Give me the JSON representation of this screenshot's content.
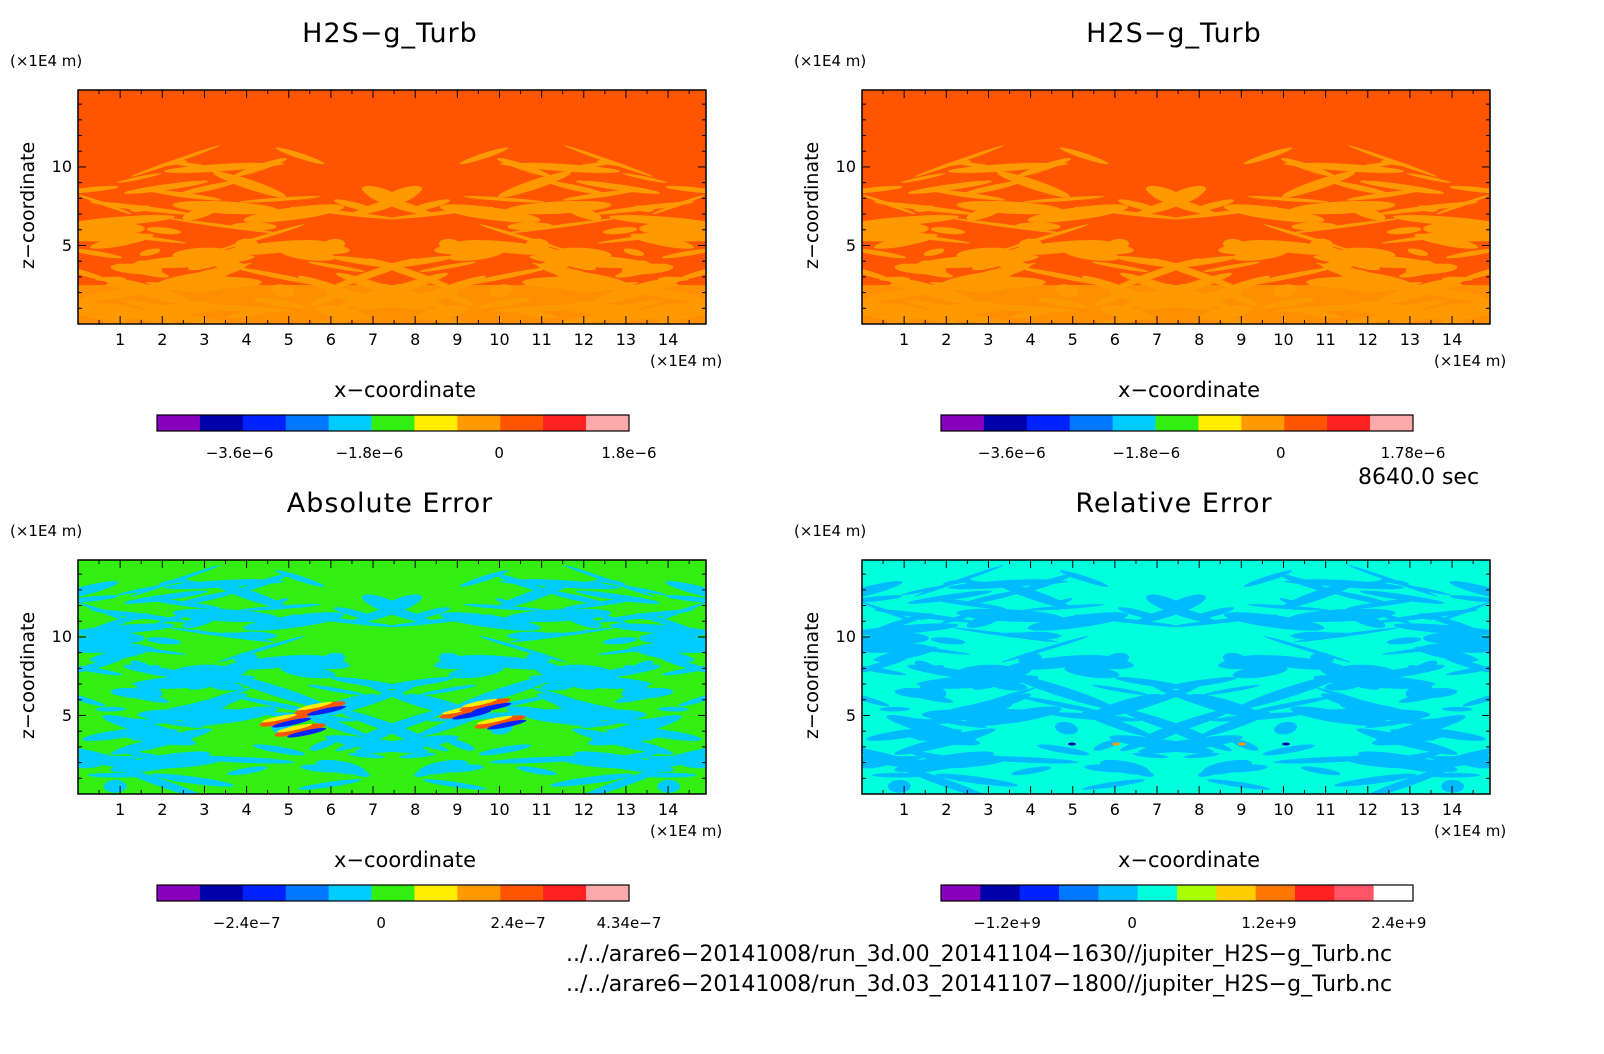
{
  "panels": [
    {
      "title": "H2S−g_Turb",
      "xlabel": "x−coordinate",
      "ylabel": "z−coordinate",
      "xunit": "(×1E4 m)",
      "yunit": "(×1E4 m)",
      "colorbar": {
        "colors": [
          "#8800bb",
          "#0000aa",
          "#0022ff",
          "#0077ff",
          "#00ccff",
          "#33ee11",
          "#ffee00",
          "#ff9900",
          "#ff5500",
          "#ff2222",
          "#ffaaaa"
        ],
        "labels": [
          {
            "text": "−3.6e−6",
            "pos": 0.175
          },
          {
            "text": "−1.8e−6",
            "pos": 0.45
          },
          {
            "text": "0",
            "pos": 0.725
          },
          {
            "text": "1.8e−6",
            "pos": 1.0
          }
        ]
      },
      "field": {
        "base": "#ff5500",
        "pattern": "#ff9900",
        "style": "main"
      }
    },
    {
      "title": "H2S−g_Turb",
      "xlabel": "x−coordinate",
      "ylabel": "z−coordinate",
      "xunit": "(×1E4 m)",
      "yunit": "(×1E4 m)",
      "colorbar": {
        "colors": [
          "#8800bb",
          "#0000aa",
          "#0022ff",
          "#0077ff",
          "#00ccff",
          "#33ee11",
          "#ffee00",
          "#ff9900",
          "#ff5500",
          "#ff2222",
          "#ffaaaa"
        ],
        "labels": [
          {
            "text": "−3.6e−6",
            "pos": 0.15
          },
          {
            "text": "−1.8e−6",
            "pos": 0.435
          },
          {
            "text": "0",
            "pos": 0.72
          },
          {
            "text": "1.78e−6",
            "pos": 1.0
          }
        ]
      },
      "field": {
        "base": "#ff5500",
        "pattern": "#ff9900",
        "style": "main"
      }
    },
    {
      "title": "Absolute Error",
      "xlabel": "x−coordinate",
      "ylabel": "z−coordinate",
      "xunit": "(×1E4 m)",
      "yunit": "(×1E4 m)",
      "colorbar": {
        "colors": [
          "#8800bb",
          "#0000aa",
          "#0022ff",
          "#0077ff",
          "#00ccff",
          "#33ee11",
          "#ffee00",
          "#ff9900",
          "#ff5500",
          "#ff2222",
          "#ffaaaa"
        ],
        "labels": [
          {
            "text": "−2.4e−7",
            "pos": 0.19
          },
          {
            "text": "0",
            "pos": 0.475
          },
          {
            "text": "2.4e−7",
            "pos": 0.765
          },
          {
            "text": "4.34e−7",
            "pos": 1.0
          }
        ]
      },
      "field": {
        "base": "#33ee11",
        "pattern": "#00ccff",
        "style": "abs"
      }
    },
    {
      "title": "Relative Error",
      "xlabel": "x−coordinate",
      "ylabel": "z−coordinate",
      "xunit": "(×1E4 m)",
      "yunit": "(×1E4 m)",
      "colorbar": {
        "colors": [
          "#8800bb",
          "#0000aa",
          "#0022ff",
          "#0077ff",
          "#00bbff",
          "#00ffdd",
          "#aaff00",
          "#ffcc00",
          "#ff7700",
          "#ff2222",
          "#ff5566",
          "#ffffff"
        ],
        "labels": [
          {
            "text": "−1.2e+9",
            "pos": 0.14
          },
          {
            "text": "0",
            "pos": 0.405
          },
          {
            "text": "1.2e+9",
            "pos": 0.695
          },
          {
            "text": "2.4e+9",
            "pos": 0.97
          }
        ]
      },
      "field": {
        "base": "#00ffdd",
        "pattern": "#00bbff",
        "style": "rel"
      }
    }
  ],
  "chart_data": {
    "type": "heatmap",
    "x_ticks": [
      1,
      2,
      3,
      4,
      5,
      6,
      7,
      8,
      9,
      10,
      11,
      12,
      13,
      14
    ],
    "y_ticks": [
      5,
      10
    ],
    "xlim": [
      0,
      14.9
    ],
    "ylim": [
      0,
      14.9
    ],
    "grid": false
  },
  "time_label": "8640.0 sec",
  "file_paths": [
    "../../arare6−20141008/run_3d.00_20141104−1630//jupiter_H2S−g_Turb.nc",
    "../../arare6−20141008/run_3d.03_20141107−1800//jupiter_H2S−g_Turb.nc"
  ]
}
